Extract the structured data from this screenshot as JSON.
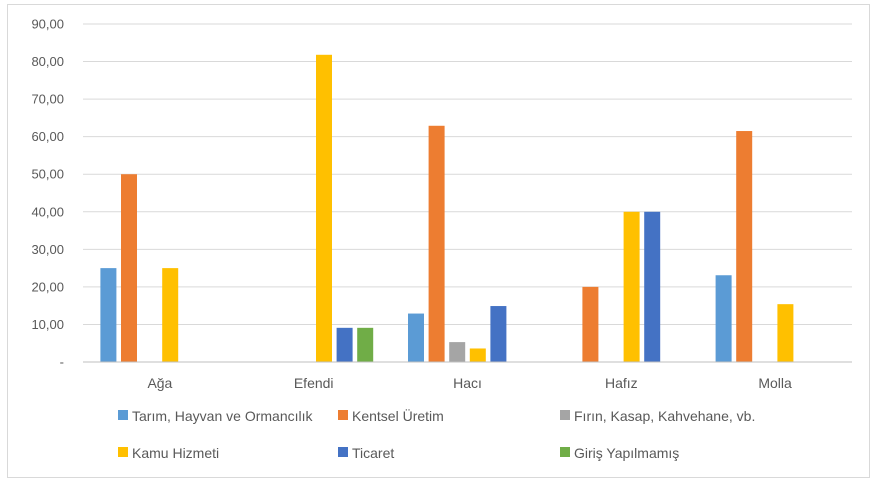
{
  "chart_data": {
    "type": "bar",
    "categories": [
      "Ağa",
      "Efendi",
      "Hacı",
      "Hafız",
      "Molla"
    ],
    "y_ticks": [
      "-",
      "10,00",
      "20,00",
      "30,00",
      "40,00",
      "50,00",
      "60,00",
      "70,00",
      "80,00",
      "90,00"
    ],
    "ylim": [
      0,
      90
    ],
    "grid": true,
    "legend_position": "bottom",
    "series": [
      {
        "name": "Tarım, Hayvan ve Ormancılık",
        "color": "#5b9bd5",
        "values": [
          25,
          0,
          12.9,
          0,
          23.1
        ]
      },
      {
        "name": "Kentsel Üretim",
        "color": "#ed7d31",
        "values": [
          50,
          0,
          62.9,
          20,
          61.5
        ]
      },
      {
        "name": "Fırın, Kasap, Kahvehane, vb.",
        "color": "#a5a5a5",
        "values": [
          0,
          0,
          5.3,
          0,
          0
        ]
      },
      {
        "name": "Kamu Hizmeti",
        "color": "#ffc000",
        "values": [
          25,
          81.8,
          3.6,
          40,
          15.4
        ]
      },
      {
        "name": "Ticaret",
        "color": "#4472c4",
        "values": [
          0,
          9.1,
          14.9,
          40,
          0
        ]
      },
      {
        "name": "Giriş Yapılmamış",
        "color": "#70ad47",
        "values": [
          0,
          9.1,
          0,
          0,
          0
        ]
      }
    ]
  }
}
